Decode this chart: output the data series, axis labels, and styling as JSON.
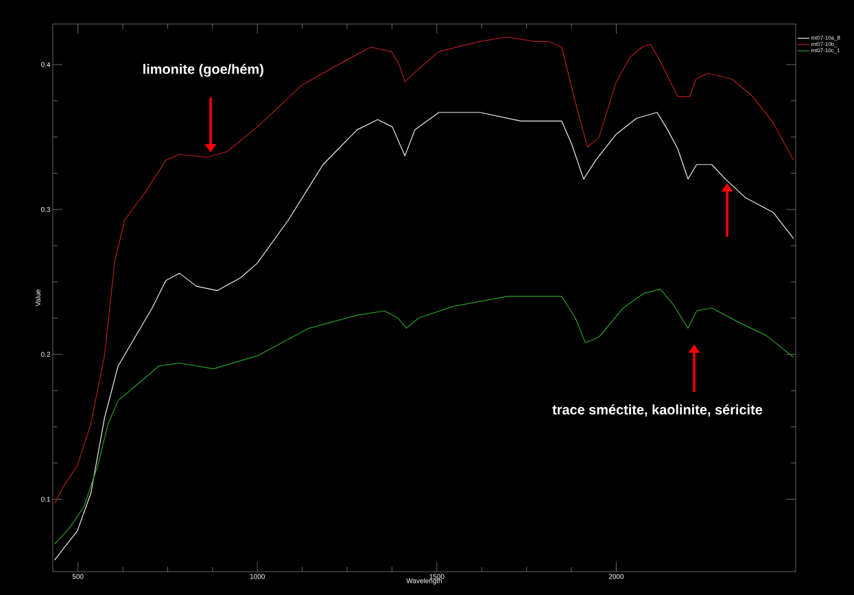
{
  "chart_data": {
    "type": "line",
    "xlabel": "Wavelength",
    "ylabel": "Value",
    "xlim": [
      430,
      2500
    ],
    "ylim": [
      0.05,
      0.428
    ],
    "xticks": [
      500,
      1000,
      1500,
      2000
    ],
    "yticks": [
      0.1,
      0.2,
      0.3,
      0.4
    ],
    "legend": "top right",
    "series": [
      {
        "name": "mt07-10a_8",
        "color": "#f0f0f0",
        "x": [
          435,
          460,
          498,
          536,
          574,
          612,
          650,
          707,
          745,
          783,
          830,
          888,
          954,
          1000,
          1087,
          1183,
          1278,
          1335,
          1376,
          1411,
          1439,
          1506,
          1620,
          1734,
          1848,
          1876,
          1909,
          1943,
          2000,
          2057,
          2114,
          2143,
          2171,
          2200,
          2224,
          2266,
          2304,
          2361,
          2437,
          2494
        ],
        "values": [
          0.058,
          0.066,
          0.078,
          0.104,
          0.156,
          0.192,
          0.208,
          0.232,
          0.251,
          0.256,
          0.247,
          0.244,
          0.253,
          0.263,
          0.293,
          0.331,
          0.355,
          0.362,
          0.357,
          0.337,
          0.355,
          0.367,
          0.367,
          0.361,
          0.361,
          0.345,
          0.321,
          0.334,
          0.352,
          0.363,
          0.367,
          0.355,
          0.342,
          0.321,
          0.331,
          0.331,
          0.321,
          0.308,
          0.298,
          0.28
        ]
      },
      {
        "name": "mt07-10b_",
        "color": "#b41e1e",
        "x": [
          435,
          460,
          498,
          536,
          574,
          603,
          631,
          688,
          745,
          783,
          859,
          916,
          1000,
          1125,
          1240,
          1316,
          1373,
          1395,
          1411,
          1449,
          1506,
          1620,
          1696,
          1772,
          1810,
          1848,
          1886,
          1920,
          1952,
          2000,
          2038,
          2072,
          2095,
          2123,
          2171,
          2205,
          2222,
          2256,
          2323,
          2380,
          2437,
          2494
        ],
        "values": [
          0.097,
          0.109,
          0.123,
          0.152,
          0.199,
          0.265,
          0.293,
          0.312,
          0.334,
          0.338,
          0.336,
          0.34,
          0.357,
          0.386,
          0.402,
          0.412,
          0.409,
          0.4,
          0.388,
          0.397,
          0.409,
          0.416,
          0.419,
          0.416,
          0.416,
          0.412,
          0.374,
          0.343,
          0.35,
          0.388,
          0.405,
          0.412,
          0.414,
          0.402,
          0.378,
          0.378,
          0.39,
          0.394,
          0.39,
          0.378,
          0.36,
          0.334
        ]
      },
      {
        "name": "mt07-10c_1",
        "color": "#28a028",
        "x": [
          435,
          479,
          517,
          555,
          584,
          612,
          669,
          726,
          783,
          878,
          1000,
          1144,
          1278,
          1354,
          1392,
          1415,
          1449,
          1544,
          1696,
          1810,
          1848,
          1886,
          1914,
          1952,
          2019,
          2076,
          2123,
          2160,
          2200,
          2224,
          2266,
          2342,
          2418,
          2494
        ],
        "values": [
          0.069,
          0.081,
          0.095,
          0.123,
          0.152,
          0.168,
          0.18,
          0.192,
          0.194,
          0.19,
          0.199,
          0.218,
          0.227,
          0.23,
          0.225,
          0.218,
          0.225,
          0.233,
          0.24,
          0.24,
          0.24,
          0.225,
          0.208,
          0.212,
          0.232,
          0.242,
          0.245,
          0.234,
          0.218,
          0.23,
          0.232,
          0.222,
          0.213,
          0.198
        ]
      }
    ],
    "annotations": [
      "limonite (goe/hém)",
      "trace sméctite, kaolinite, séricite"
    ]
  }
}
